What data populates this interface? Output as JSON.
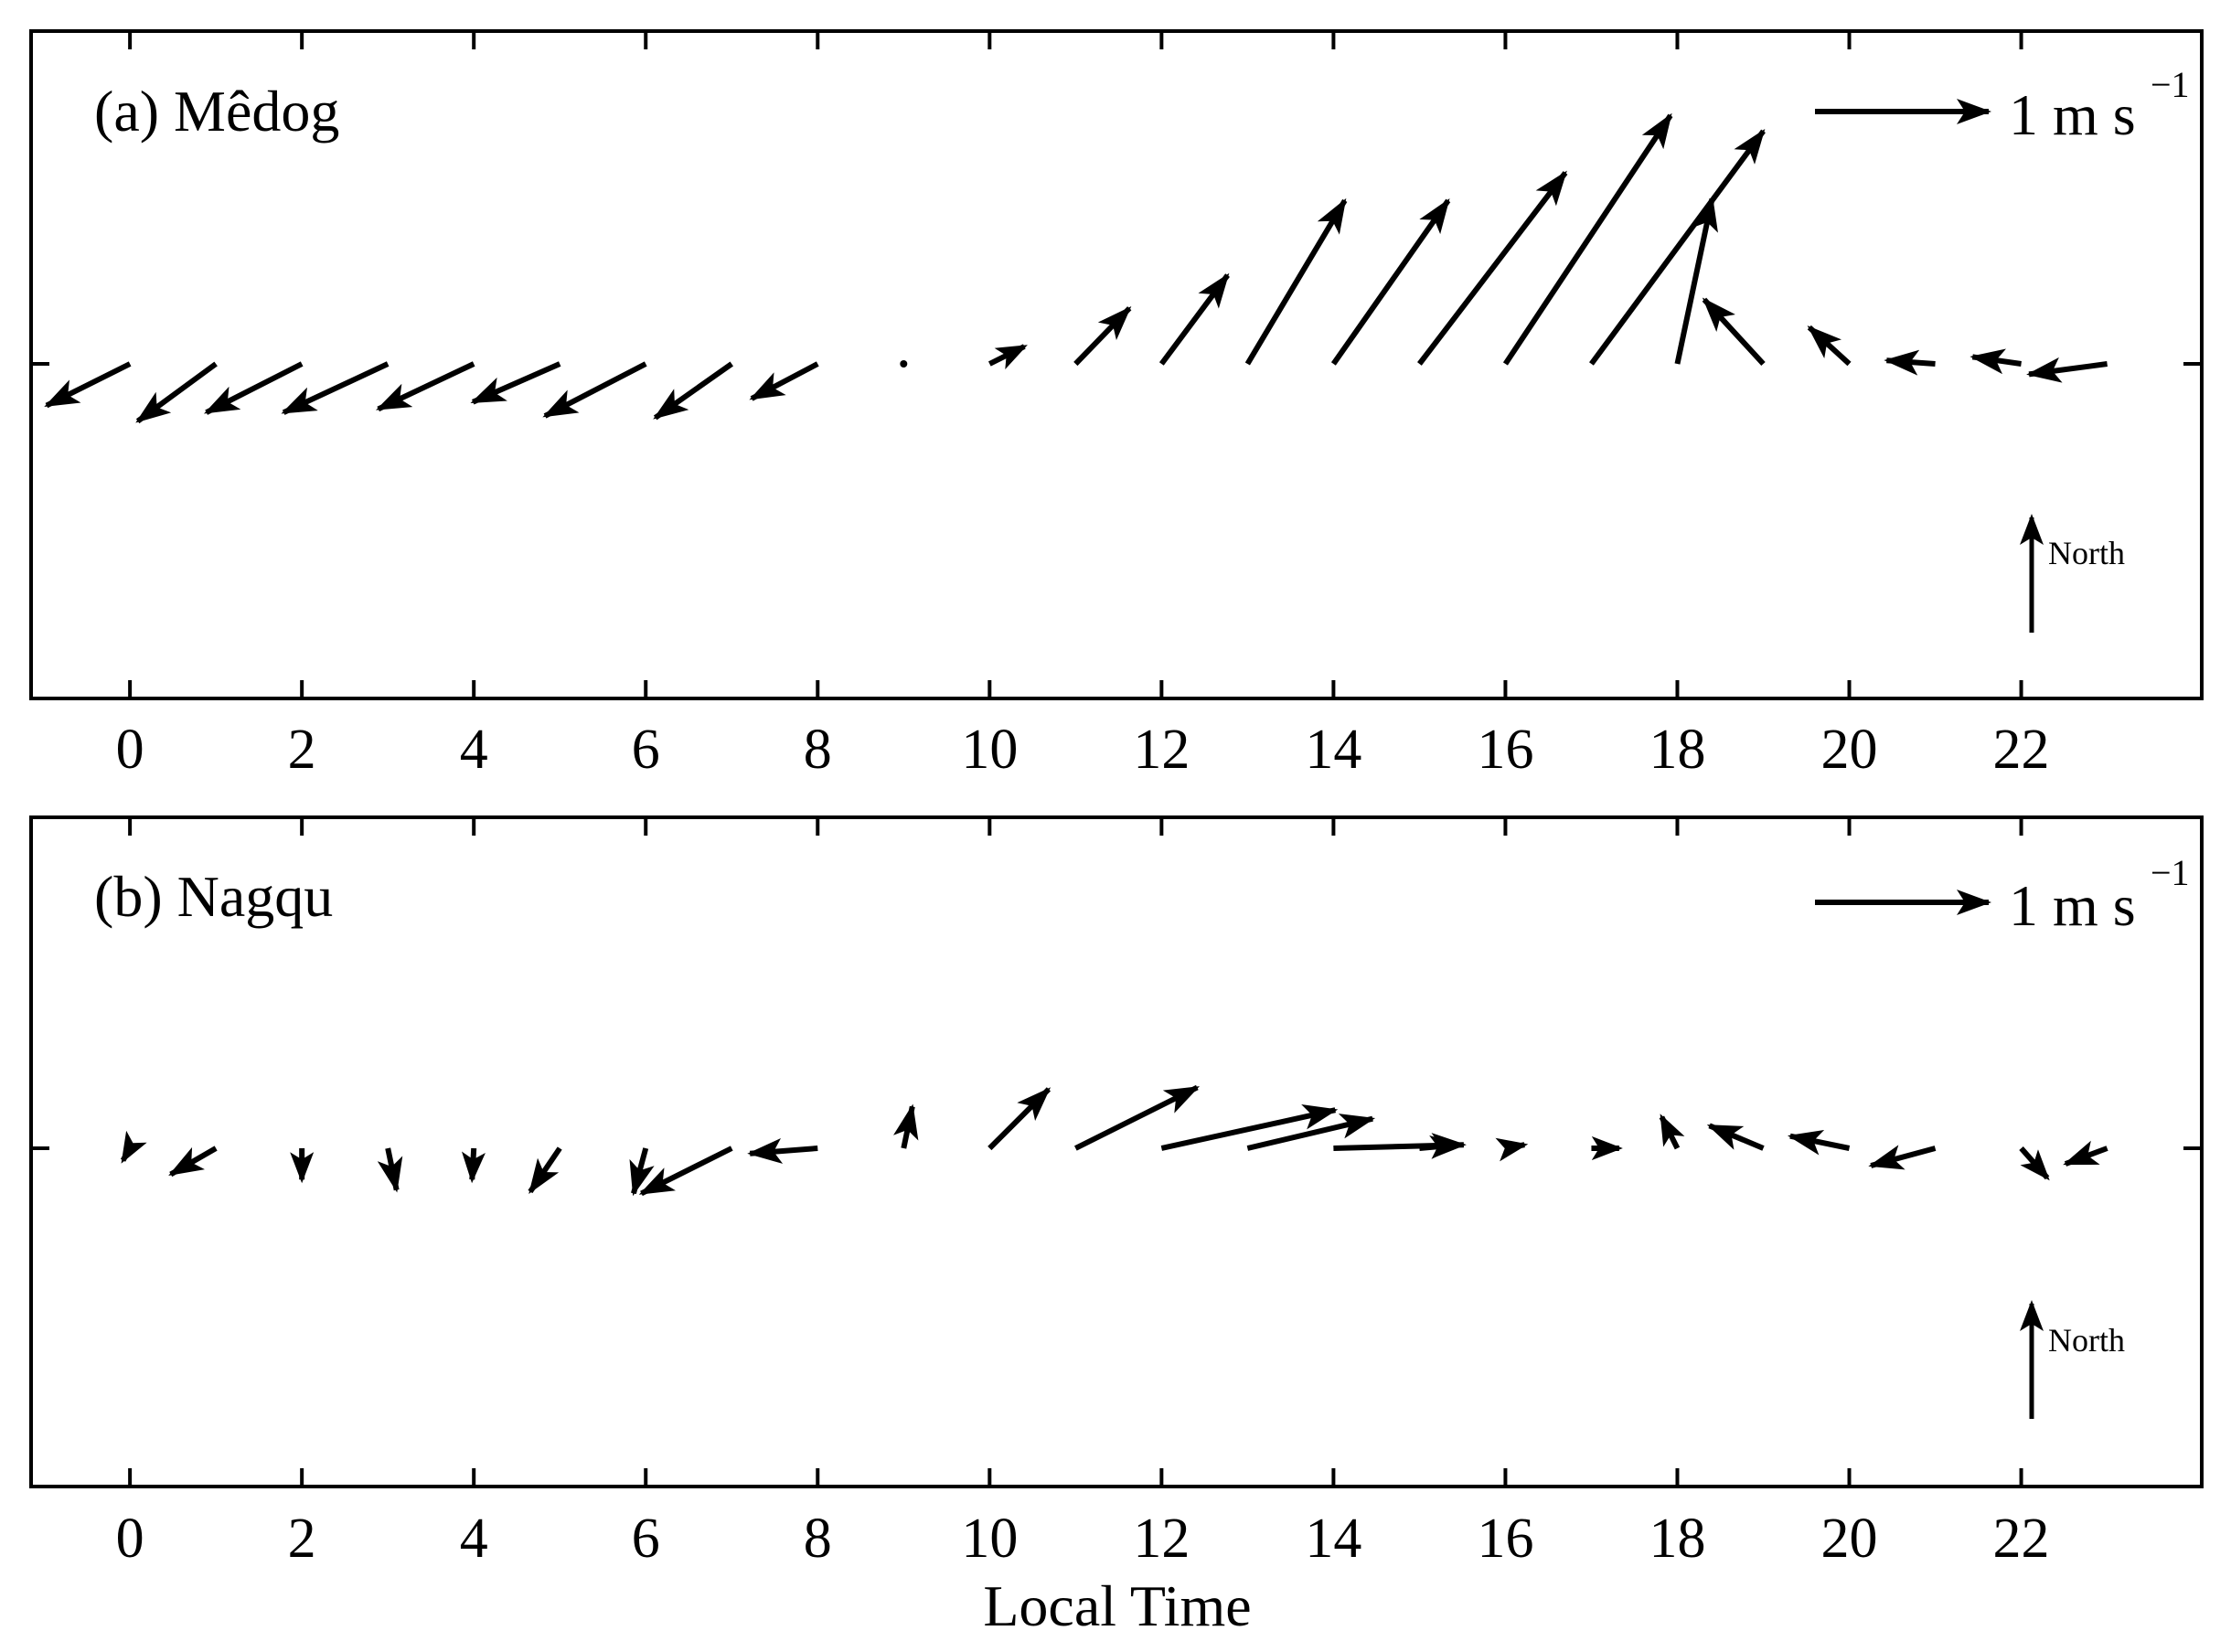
{
  "figure": {
    "xlabel": "Local Time",
    "north_label": "North",
    "reference_vector": {
      "magnitude": 1,
      "label_main": "1 m s",
      "label_sup": "−1"
    },
    "colors": {
      "ink": "#000000",
      "background": "#ffffff"
    }
  },
  "chart_data": [
    {
      "type": "vector",
      "title": "(a) Mêdog",
      "xlabel": "",
      "x_ticks": [
        0,
        2,
        4,
        6,
        8,
        10,
        12,
        14,
        16,
        18,
        20,
        22
      ],
      "xlim": [
        -1.15,
        24.1
      ],
      "hours": [
        0,
        1,
        2,
        3,
        4,
        5,
        6,
        7,
        8,
        9,
        10,
        11,
        12,
        13,
        14,
        15,
        16,
        17,
        18,
        19,
        20,
        21,
        22,
        23
      ],
      "u": [
        -0.48,
        -0.45,
        -0.55,
        -0.6,
        -0.55,
        -0.5,
        -0.58,
        -0.44,
        -0.38,
        -0.02,
        0.2,
        0.31,
        0.38,
        0.56,
        0.66,
        0.84,
        0.95,
        0.99,
        0.2,
        -0.34,
        -0.23,
        -0.28,
        -0.28,
        -0.45
      ],
      "v": [
        -0.24,
        -0.33,
        -0.28,
        -0.28,
        -0.26,
        -0.22,
        -0.3,
        -0.31,
        -0.2,
        -0.02,
        0.1,
        0.32,
        0.51,
        0.94,
        0.94,
        1.1,
        1.43,
        1.34,
        0.95,
        0.37,
        0.21,
        0.02,
        0.04,
        -0.06
      ]
    },
    {
      "type": "vector",
      "title": "(b) Nagqu",
      "xlabel": "Local Time",
      "x_ticks": [
        0,
        2,
        4,
        6,
        8,
        10,
        12,
        14,
        16,
        18,
        20,
        22
      ],
      "xlim": [
        -1.15,
        24.1
      ],
      "hours": [
        0,
        1,
        2,
        3,
        4,
        5,
        6,
        7,
        8,
        9,
        10,
        11,
        12,
        13,
        14,
        15,
        16,
        17,
        18,
        19,
        20,
        21,
        22,
        23
      ],
      "u": [
        -0.04,
        -0.26,
        0.0,
        0.05,
        -0.01,
        -0.17,
        -0.07,
        -0.52,
        -0.39,
        0.05,
        0.34,
        0.7,
        1.0,
        0.72,
        0.75,
        0.22,
        0.11,
        0.16,
        -0.09,
        -0.31,
        -0.34,
        -0.37,
        0.15,
        -0.24
      ],
      "v": [
        -0.07,
        -0.15,
        -0.18,
        -0.24,
        -0.18,
        -0.25,
        -0.26,
        -0.26,
        -0.03,
        0.24,
        0.34,
        0.35,
        0.22,
        0.17,
        0.02,
        0.02,
        0.02,
        0.0,
        0.18,
        0.13,
        0.07,
        -0.1,
        -0.17,
        -0.09
      ]
    }
  ]
}
